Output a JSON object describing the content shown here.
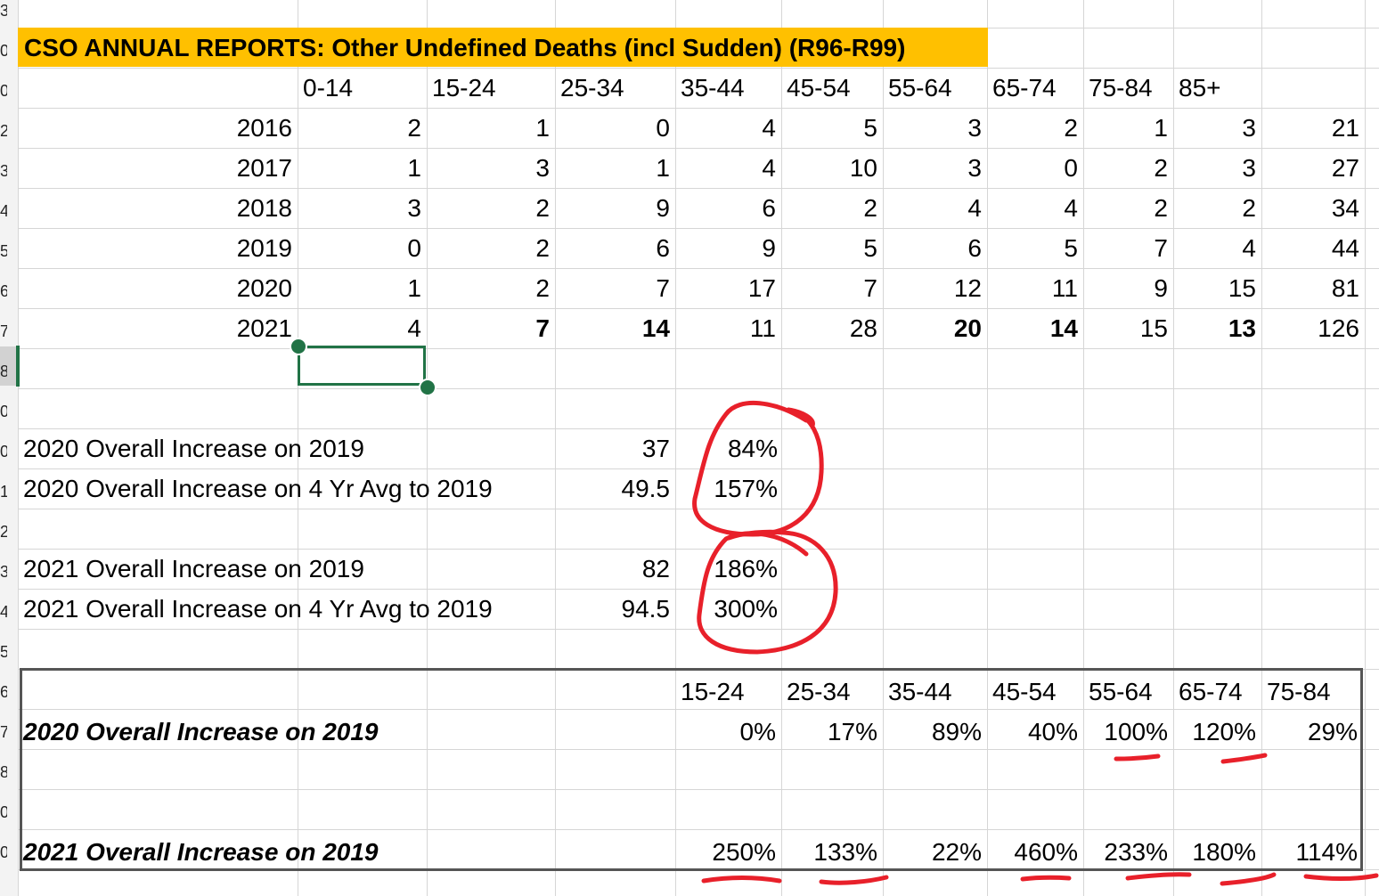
{
  "title": "CSO ANNUAL REPORTS: Other Undefined Deaths (incl Sudden) (R96-R99)",
  "age_headers": [
    "0-14",
    "15-24",
    "25-34",
    "35-44",
    "45-54",
    "55-64",
    "65-74",
    "75-84",
    "85+"
  ],
  "years": [
    {
      "year": "2016",
      "values": [
        "2",
        "1",
        "0",
        "4",
        "5",
        "3",
        "2",
        "1",
        "3"
      ],
      "total": "21"
    },
    {
      "year": "2017",
      "values": [
        "1",
        "3",
        "1",
        "4",
        "10",
        "3",
        "0",
        "2",
        "3"
      ],
      "total": "27"
    },
    {
      "year": "2018",
      "values": [
        "3",
        "2",
        "9",
        "6",
        "2",
        "4",
        "4",
        "2",
        "2"
      ],
      "total": "34"
    },
    {
      "year": "2019",
      "values": [
        "0",
        "2",
        "6",
        "9",
        "5",
        "6",
        "5",
        "7",
        "4"
      ],
      "total": "44"
    },
    {
      "year": "2020",
      "values": [
        "1",
        "2",
        "7",
        "17",
        "7",
        "12",
        "11",
        "9",
        "15"
      ],
      "total": "81"
    },
    {
      "year": "2021",
      "values": [
        "4",
        "7",
        "14",
        "11",
        "28",
        "20",
        "14",
        "15",
        "13"
      ],
      "total": "126"
    }
  ],
  "increases": [
    {
      "label": "2020 Overall Increase on 2019",
      "value": "37",
      "percent": "84%"
    },
    {
      "label": "2020 Overall Increase on 4 Yr Avg to 2019",
      "value": "49.5",
      "percent": "157%"
    },
    {
      "label": "2021 Overall Increase on 2019",
      "value": "82",
      "percent": "186%"
    },
    {
      "label": "2021 Overall Increase on 4 Yr Avg to 2019",
      "value": "94.5",
      "percent": "300%"
    }
  ],
  "summary_headers": [
    "15-24",
    "25-34",
    "35-44",
    "45-54",
    "55-64",
    "65-74",
    "75-84"
  ],
  "summary_rows": [
    {
      "label": "2020 Overall Increase on 2019",
      "values": [
        "0%",
        "17%",
        "89%",
        "40%",
        "100%",
        "120%",
        "29%"
      ]
    },
    {
      "label": "2021 Overall Increase on 2019",
      "values": [
        "250%",
        "133%",
        "22%",
        "460%",
        "233%",
        "180%",
        "114%"
      ]
    }
  ],
  "row_numbers": [
    "3",
    "0",
    "0",
    "2",
    "3",
    "4",
    "5",
    "6",
    "7",
    "8",
    "0",
    "0",
    "1",
    "2",
    "3",
    "4",
    "5",
    "6",
    "7",
    "8",
    "0",
    "0"
  ],
  "colors": {
    "title_fill": "#ffc000",
    "selection": "#217346",
    "ink": "#e8202a"
  }
}
